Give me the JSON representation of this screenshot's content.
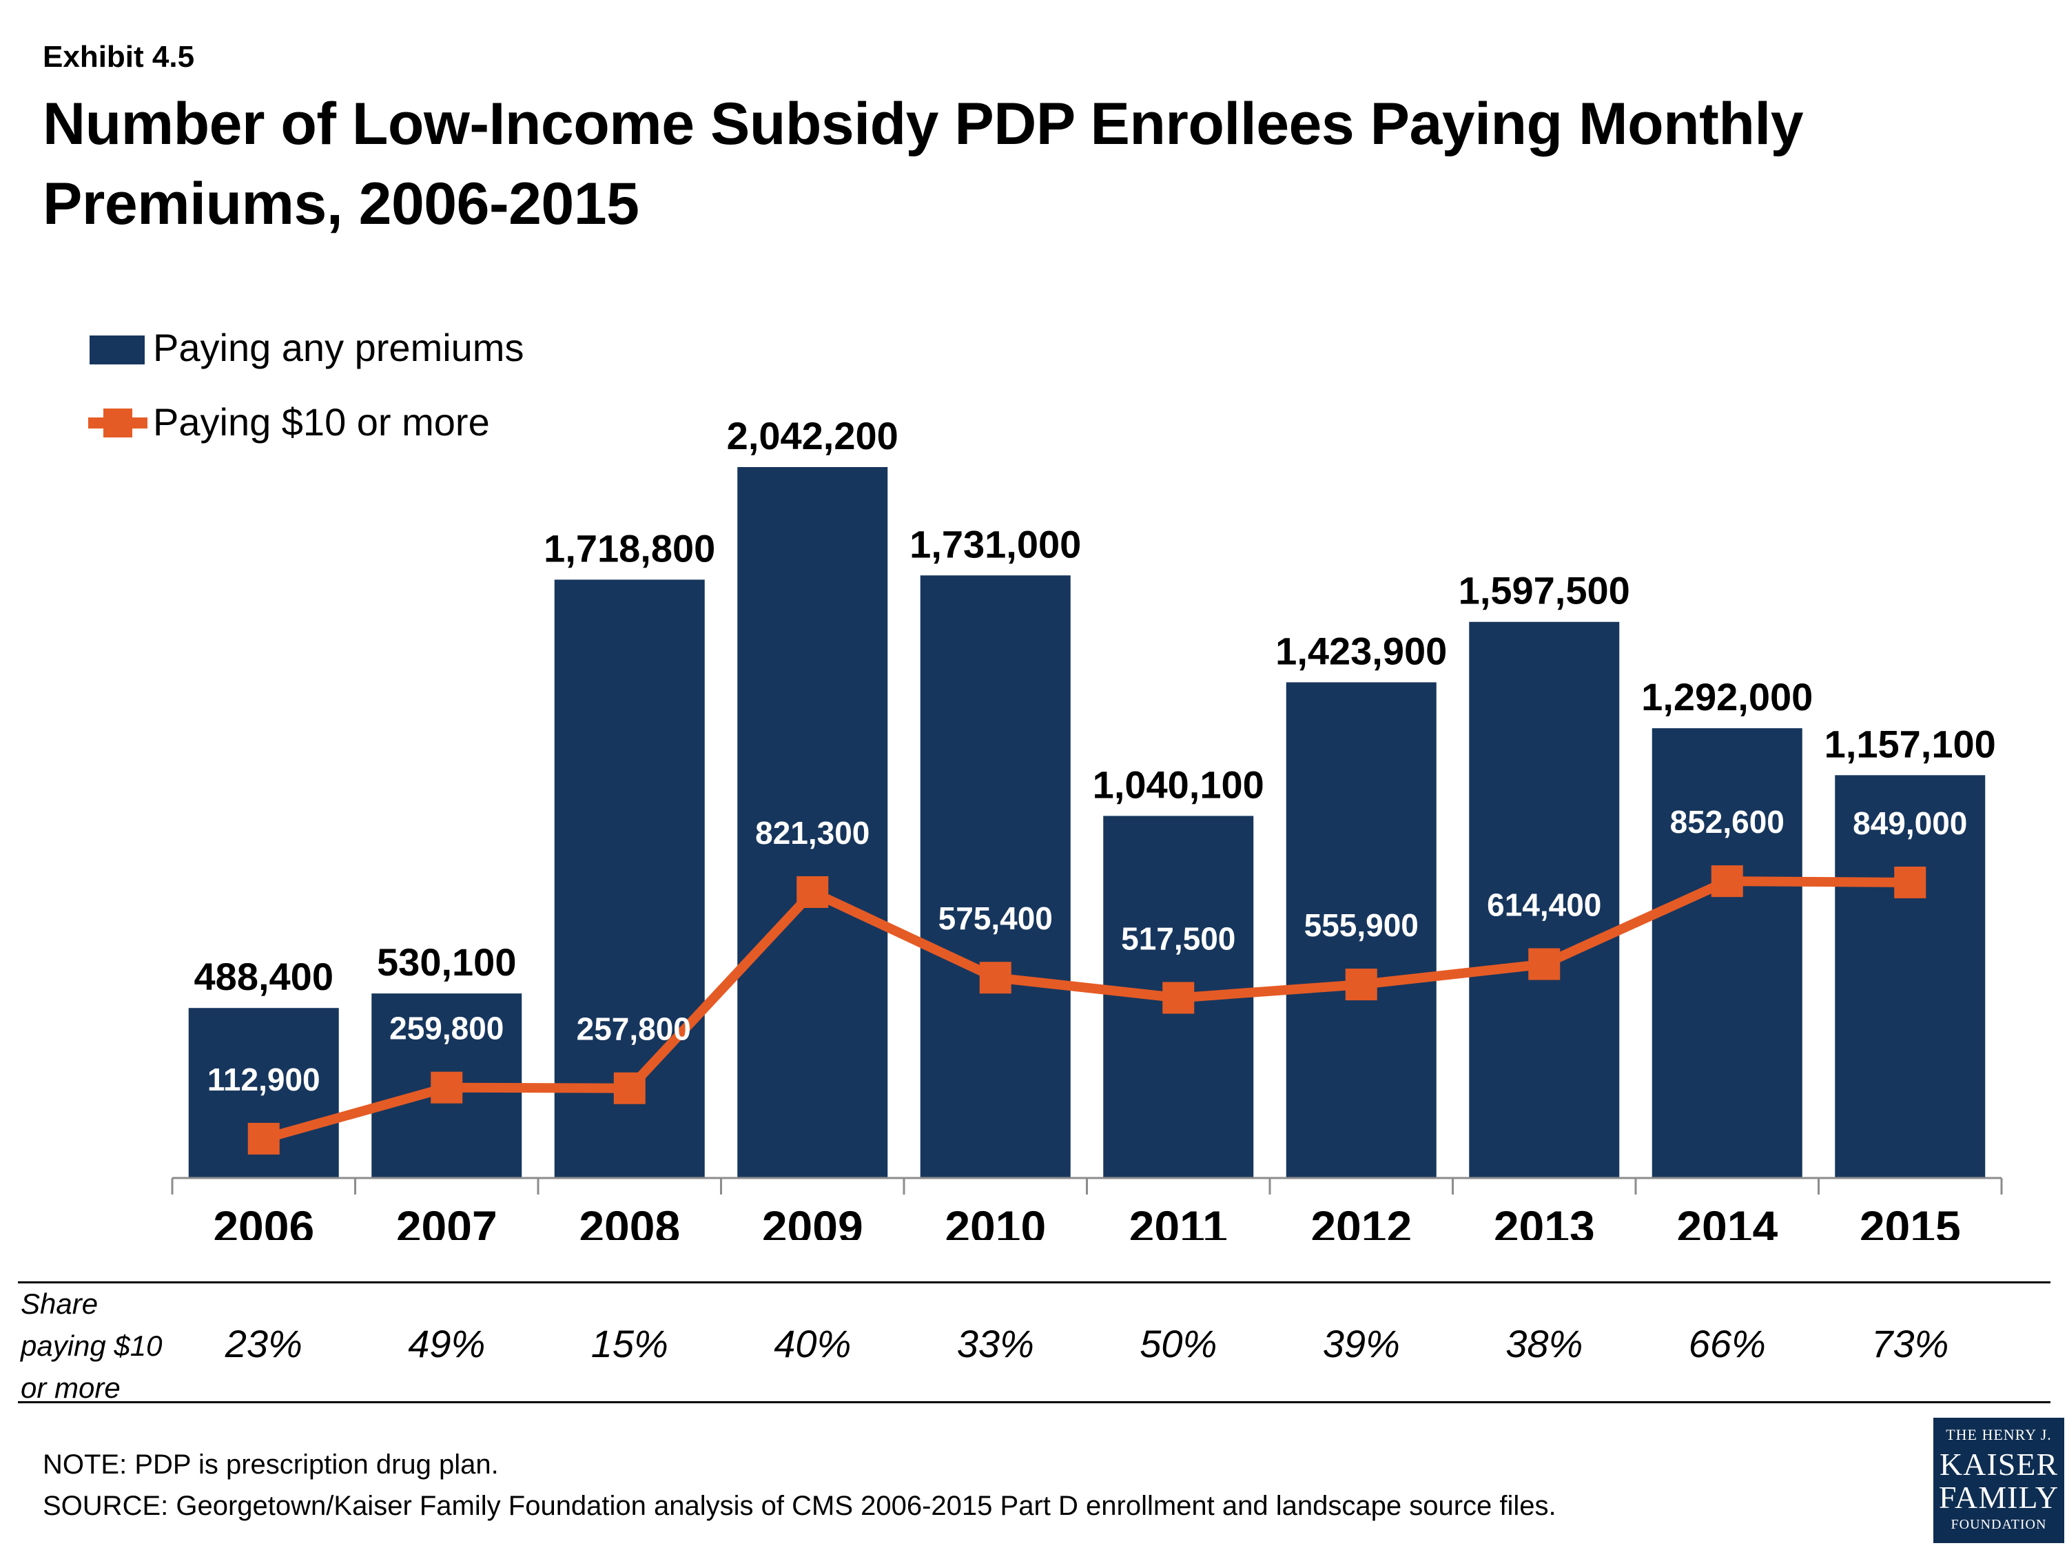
{
  "header": {
    "exhibit": "Exhibit 4.5",
    "title": "Number of Low-Income Subsidy PDP Enrollees Paying Monthly Premiums, 2006-2015"
  },
  "colors": {
    "bar": "#17365d",
    "line": "#e55b25",
    "text": "#000000",
    "inner_label": "#ffffff"
  },
  "chart_data": {
    "type": "bar",
    "categories": [
      "2006",
      "2007",
      "2008",
      "2009",
      "2010",
      "2011",
      "2012",
      "2013",
      "2014",
      "2015"
    ],
    "series": [
      {
        "name": "Paying any premiums",
        "type": "bar",
        "values": [
          488400,
          530100,
          1718800,
          2042200,
          1731000,
          1040100,
          1423900,
          1597500,
          1292000,
          1157100
        ],
        "labels": [
          "488,400",
          "530,100",
          "1,718,800",
          "2,042,200",
          "1,731,000",
          "1,040,100",
          "1,423,900",
          "1,597,500",
          "1,292,000",
          "1,157,100"
        ]
      },
      {
        "name": "Paying $10 or more",
        "type": "line",
        "values": [
          112900,
          259800,
          257800,
          821300,
          575400,
          517500,
          555900,
          614400,
          852600,
          849000
        ],
        "labels": [
          "112,900",
          "259,800",
          "257,800",
          "821,300",
          "575,400",
          "517,500",
          "555,900",
          "614,400",
          "852,600",
          "849,000"
        ]
      }
    ],
    "ylim": [
      0,
      2100000
    ],
    "legend_position": "top-left",
    "grid": false
  },
  "share_table": {
    "label_lines": [
      "Share",
      "paying $10",
      "or more"
    ],
    "values": [
      "23%",
      "49%",
      "15%",
      "40%",
      "33%",
      "50%",
      "39%",
      "38%",
      "66%",
      "73%"
    ]
  },
  "footer": {
    "note": "NOTE: PDP is prescription drug plan.",
    "source": "SOURCE: Georgetown/Kaiser Family Foundation analysis of CMS 2006-2015 Part D enrollment and landscape source files."
  },
  "logo": {
    "line1": "THE HENRY J.",
    "line2": "KAISER",
    "line3": "FAMILY",
    "line4": "FOUNDATION"
  }
}
